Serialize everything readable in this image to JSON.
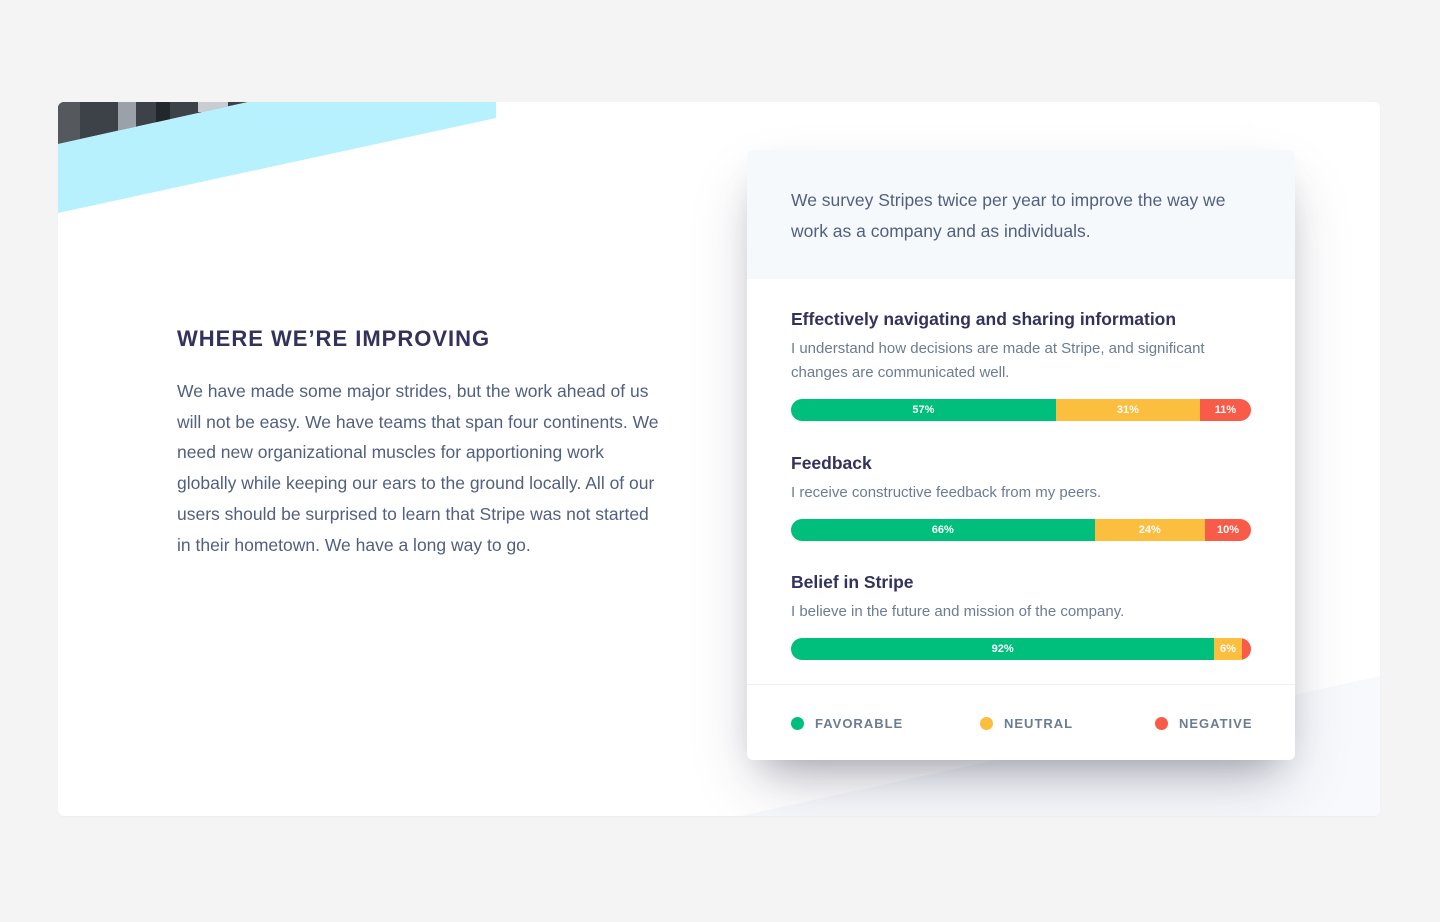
{
  "section": {
    "heading": "WHERE WE’RE IMPROVING",
    "body": "We have made some major strides, but the work ahead of us will not be easy. We have teams that span four continents. We need new organizational muscles for apportioning work globally while keeping our ears to the ground locally. All of our users should be surprised to learn that Stripe was not started in their hometown. We have a long way to go."
  },
  "survey": {
    "intro": "We survey Stripes twice per year to improve the way we work as a company and as individuals."
  },
  "chart_data": {
    "type": "bar",
    "orientation": "horizontal-stacked",
    "categories": [
      "Effectively navigating and sharing information",
      "Feedback",
      "Belief in Stripe"
    ],
    "descriptions": [
      "I understand how decisions are made at Stripe, and significant changes are communicated well.",
      "I receive constructive feedback from my peers.",
      "I believe in the future and mission of the company."
    ],
    "series": [
      {
        "name": "FAVORABLE",
        "values": [
          57,
          66,
          92
        ],
        "labels": [
          "57%",
          "66%",
          "92%"
        ],
        "color": "#00bf7c"
      },
      {
        "name": "NEUTRAL",
        "values": [
          31,
          24,
          6
        ],
        "labels": [
          "31%",
          "24%",
          "6%"
        ],
        "color": "#fbbe3f"
      },
      {
        "name": "NEGATIVE",
        "values": [
          11,
          10,
          2
        ],
        "labels": [
          "11%",
          "10%",
          ""
        ],
        "color": "#f85b48"
      }
    ],
    "legend": "bottom"
  },
  "colors": {
    "heading": "#32325d",
    "body_text": "#525f7f",
    "accent_cyan": "#b8f1fe"
  }
}
